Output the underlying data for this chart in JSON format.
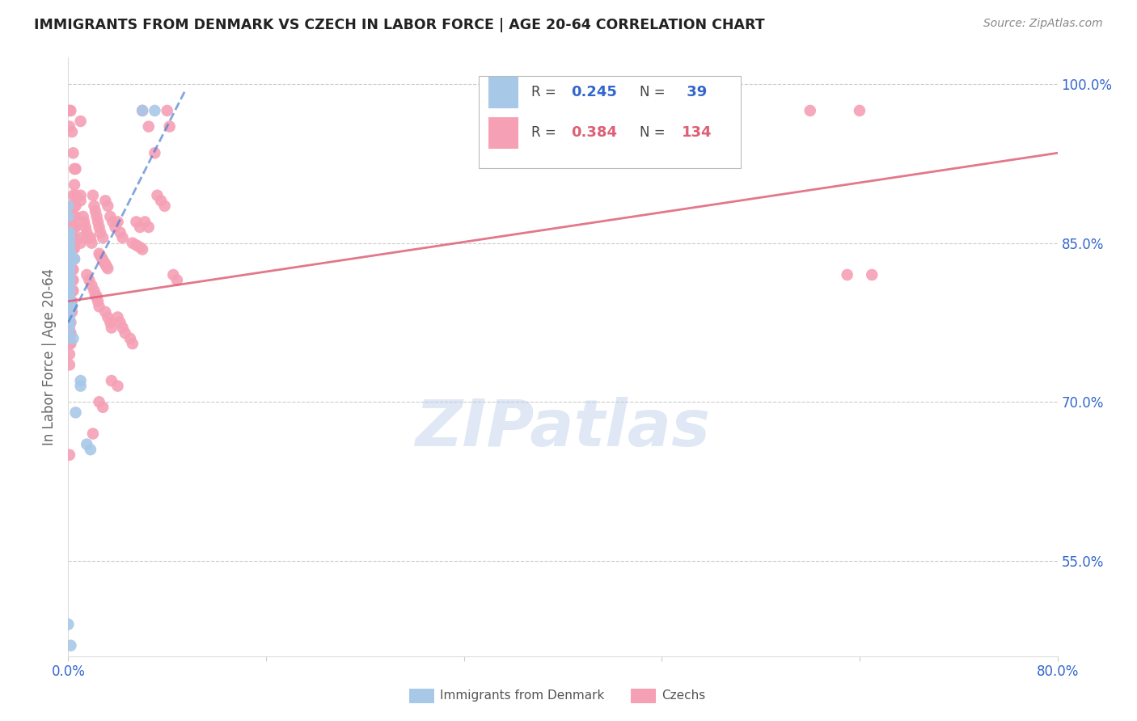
{
  "title": "IMMIGRANTS FROM DENMARK VS CZECH IN LABOR FORCE | AGE 20-64 CORRELATION CHART",
  "source": "Source: ZipAtlas.com",
  "ylabel": "In Labor Force | Age 20-64",
  "xlim": [
    0.0,
    0.8
  ],
  "ylim": [
    0.46,
    1.025
  ],
  "xticks": [
    0.0,
    0.16,
    0.32,
    0.48,
    0.64,
    0.8
  ],
  "xticklabels": [
    "0.0%",
    "",
    "",
    "",
    "",
    "80.0%"
  ],
  "yticks_right": [
    0.55,
    0.7,
    0.85,
    1.0
  ],
  "yticklabels_right": [
    "55.0%",
    "70.0%",
    "85.0%",
    "100.0%"
  ],
  "grid_color": "#cccccc",
  "background_color": "#ffffff",
  "watermark": "ZIPatlas",
  "denmark_color": "#a8c8e8",
  "czech_color": "#f5a0b5",
  "denmark_trendline_color": "#4477cc",
  "czech_trendline_color": "#dd6075",
  "denmark_line_x": [
    0.0,
    0.095
  ],
  "denmark_line_y": [
    0.775,
    0.995
  ],
  "czech_line_x": [
    0.0,
    0.8
  ],
  "czech_line_y": [
    0.795,
    0.935
  ],
  "denmark_scatter": [
    [
      0.0,
      0.885
    ],
    [
      0.0,
      0.875
    ],
    [
      0.001,
      0.86
    ],
    [
      0.001,
      0.855
    ],
    [
      0.001,
      0.85
    ],
    [
      0.001,
      0.845
    ],
    [
      0.001,
      0.84
    ],
    [
      0.001,
      0.835
    ],
    [
      0.001,
      0.83
    ],
    [
      0.001,
      0.825
    ],
    [
      0.001,
      0.82
    ],
    [
      0.001,
      0.815
    ],
    [
      0.001,
      0.81
    ],
    [
      0.001,
      0.805
    ],
    [
      0.001,
      0.8
    ],
    [
      0.001,
      0.795
    ],
    [
      0.001,
      0.79
    ],
    [
      0.001,
      0.785
    ],
    [
      0.001,
      0.78
    ],
    [
      0.001,
      0.775
    ],
    [
      0.001,
      0.77
    ],
    [
      0.001,
      0.76
    ],
    [
      0.002,
      0.84
    ],
    [
      0.003,
      0.835
    ],
    [
      0.003,
      0.79
    ],
    [
      0.004,
      0.835
    ],
    [
      0.004,
      0.76
    ],
    [
      0.005,
      0.835
    ],
    [
      0.006,
      0.69
    ],
    [
      0.01,
      0.72
    ],
    [
      0.01,
      0.715
    ],
    [
      0.015,
      0.66
    ],
    [
      0.018,
      0.655
    ],
    [
      0.06,
      0.975
    ],
    [
      0.07,
      0.975
    ],
    [
      0.0,
      0.49
    ],
    [
      0.002,
      0.47
    ]
  ],
  "czech_scatter": [
    [
      0.001,
      0.975
    ],
    [
      0.002,
      0.975
    ],
    [
      0.001,
      0.96
    ],
    [
      0.003,
      0.955
    ],
    [
      0.004,
      0.935
    ],
    [
      0.005,
      0.92
    ],
    [
      0.006,
      0.92
    ],
    [
      0.005,
      0.905
    ],
    [
      0.004,
      0.895
    ],
    [
      0.006,
      0.895
    ],
    [
      0.003,
      0.885
    ],
    [
      0.004,
      0.885
    ],
    [
      0.005,
      0.885
    ],
    [
      0.006,
      0.885
    ],
    [
      0.002,
      0.875
    ],
    [
      0.003,
      0.875
    ],
    [
      0.004,
      0.875
    ],
    [
      0.005,
      0.875
    ],
    [
      0.006,
      0.875
    ],
    [
      0.002,
      0.865
    ],
    [
      0.003,
      0.865
    ],
    [
      0.004,
      0.865
    ],
    [
      0.005,
      0.865
    ],
    [
      0.006,
      0.865
    ],
    [
      0.002,
      0.855
    ],
    [
      0.003,
      0.855
    ],
    [
      0.004,
      0.855
    ],
    [
      0.005,
      0.855
    ],
    [
      0.002,
      0.845
    ],
    [
      0.003,
      0.845
    ],
    [
      0.004,
      0.845
    ],
    [
      0.005,
      0.845
    ],
    [
      0.001,
      0.835
    ],
    [
      0.002,
      0.835
    ],
    [
      0.003,
      0.835
    ],
    [
      0.004,
      0.835
    ],
    [
      0.005,
      0.835
    ],
    [
      0.001,
      0.825
    ],
    [
      0.002,
      0.825
    ],
    [
      0.003,
      0.825
    ],
    [
      0.004,
      0.825
    ],
    [
      0.001,
      0.815
    ],
    [
      0.002,
      0.815
    ],
    [
      0.003,
      0.815
    ],
    [
      0.004,
      0.815
    ],
    [
      0.001,
      0.805
    ],
    [
      0.002,
      0.805
    ],
    [
      0.003,
      0.805
    ],
    [
      0.004,
      0.805
    ],
    [
      0.001,
      0.795
    ],
    [
      0.002,
      0.795
    ],
    [
      0.003,
      0.795
    ],
    [
      0.001,
      0.785
    ],
    [
      0.002,
      0.785
    ],
    [
      0.003,
      0.785
    ],
    [
      0.001,
      0.775
    ],
    [
      0.002,
      0.775
    ],
    [
      0.001,
      0.765
    ],
    [
      0.002,
      0.765
    ],
    [
      0.001,
      0.755
    ],
    [
      0.002,
      0.755
    ],
    [
      0.001,
      0.745
    ],
    [
      0.001,
      0.735
    ],
    [
      0.001,
      0.65
    ],
    [
      0.01,
      0.965
    ],
    [
      0.01,
      0.895
    ],
    [
      0.01,
      0.89
    ],
    [
      0.01,
      0.855
    ],
    [
      0.01,
      0.85
    ],
    [
      0.012,
      0.875
    ],
    [
      0.013,
      0.87
    ],
    [
      0.014,
      0.865
    ],
    [
      0.015,
      0.86
    ],
    [
      0.016,
      0.855
    ],
    [
      0.018,
      0.855
    ],
    [
      0.019,
      0.85
    ],
    [
      0.02,
      0.895
    ],
    [
      0.021,
      0.885
    ],
    [
      0.022,
      0.88
    ],
    [
      0.023,
      0.875
    ],
    [
      0.024,
      0.87
    ],
    [
      0.025,
      0.865
    ],
    [
      0.026,
      0.86
    ],
    [
      0.028,
      0.855
    ],
    [
      0.03,
      0.89
    ],
    [
      0.032,
      0.885
    ],
    [
      0.034,
      0.875
    ],
    [
      0.036,
      0.87
    ],
    [
      0.038,
      0.865
    ],
    [
      0.04,
      0.87
    ],
    [
      0.042,
      0.86
    ],
    [
      0.044,
      0.855
    ],
    [
      0.025,
      0.84
    ],
    [
      0.026,
      0.838
    ],
    [
      0.027,
      0.836
    ],
    [
      0.028,
      0.834
    ],
    [
      0.029,
      0.832
    ],
    [
      0.03,
      0.83
    ],
    [
      0.031,
      0.828
    ],
    [
      0.032,
      0.826
    ],
    [
      0.015,
      0.82
    ],
    [
      0.017,
      0.815
    ],
    [
      0.019,
      0.81
    ],
    [
      0.021,
      0.805
    ],
    [
      0.022,
      0.8
    ],
    [
      0.023,
      0.8
    ],
    [
      0.024,
      0.795
    ],
    [
      0.025,
      0.79
    ],
    [
      0.03,
      0.785
    ],
    [
      0.032,
      0.78
    ],
    [
      0.034,
      0.775
    ],
    [
      0.035,
      0.77
    ],
    [
      0.04,
      0.78
    ],
    [
      0.042,
      0.775
    ],
    [
      0.044,
      0.77
    ],
    [
      0.046,
      0.765
    ],
    [
      0.05,
      0.76
    ],
    [
      0.052,
      0.755
    ],
    [
      0.035,
      0.72
    ],
    [
      0.04,
      0.715
    ],
    [
      0.025,
      0.7
    ],
    [
      0.028,
      0.695
    ],
    [
      0.02,
      0.67
    ],
    [
      0.06,
      0.975
    ],
    [
      0.065,
      0.96
    ],
    [
      0.07,
      0.935
    ],
    [
      0.072,
      0.895
    ],
    [
      0.055,
      0.87
    ],
    [
      0.058,
      0.865
    ],
    [
      0.062,
      0.87
    ],
    [
      0.065,
      0.865
    ],
    [
      0.052,
      0.85
    ],
    [
      0.055,
      0.848
    ],
    [
      0.058,
      0.846
    ],
    [
      0.06,
      0.844
    ],
    [
      0.075,
      0.89
    ],
    [
      0.078,
      0.885
    ],
    [
      0.08,
      0.975
    ],
    [
      0.082,
      0.96
    ],
    [
      0.085,
      0.82
    ],
    [
      0.088,
      0.815
    ],
    [
      0.6,
      0.975
    ],
    [
      0.63,
      0.82
    ],
    [
      0.64,
      0.975
    ],
    [
      0.65,
      0.82
    ]
  ],
  "legend_r1_color": "#3366cc",
  "legend_r2_color": "#dd6075",
  "legend_label_color": "#444444",
  "tick_color": "#3366cc",
  "ylabel_color": "#666666",
  "title_color": "#222222",
  "source_color": "#888888"
}
